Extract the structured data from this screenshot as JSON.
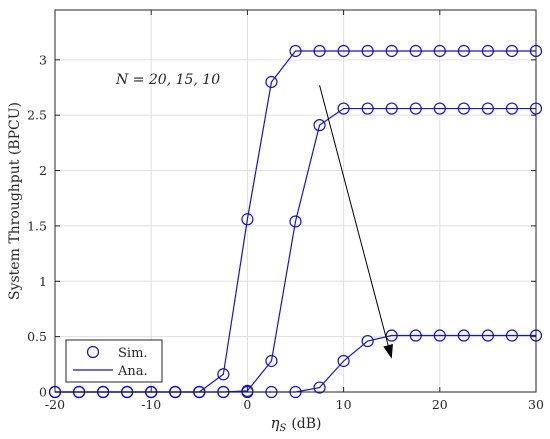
{
  "chart_data": {
    "type": "line",
    "xlabel_symbol": "η",
    "xlabel_sub": "S",
    "xlabel_unit": "(dB)",
    "ylabel": "System Throughput (BPCU)",
    "xlim": [
      -20,
      30
    ],
    "ylim": [
      0,
      3.45
    ],
    "xticks": [
      -20,
      -10,
      0,
      10,
      20,
      30
    ],
    "xtick_labels": [
      "-20",
      "-10",
      "0",
      "10",
      "20",
      "30"
    ],
    "yticks": [
      0,
      0.5,
      1,
      1.5,
      2,
      2.5,
      3
    ],
    "ytick_labels": [
      "0",
      "0.5",
      "1",
      "1.5",
      "2",
      "2.5",
      "3"
    ],
    "grid": true,
    "legend_placement": "bottom-left",
    "legend": [
      {
        "label": "Sim.",
        "style": "marker"
      },
      {
        "label": "Ana.",
        "style": "line"
      }
    ],
    "annotation": {
      "text": "N = 20, 15, 10",
      "arrow_from": [
        7.5,
        2.77
      ],
      "arrow_to": [
        15,
        0.3
      ]
    },
    "x": [
      -20,
      -17.5,
      -15,
      -12.5,
      -10,
      -7.5,
      -5,
      -2.5,
      0,
      2.5,
      5,
      7.5,
      10,
      12.5,
      15,
      17.5,
      20,
      22.5,
      25,
      27.5,
      30
    ],
    "series": [
      {
        "values": [
          0,
          0,
          0,
          0,
          0,
          0,
          0,
          0.16,
          1.56,
          2.8,
          3.08,
          3.08,
          3.08,
          3.08,
          3.08,
          3.08,
          3.08,
          3.08,
          3.08,
          3.08,
          3.08
        ]
      },
      {
        "values": [
          0,
          0,
          0,
          0,
          0,
          0,
          0,
          0,
          0.01,
          0.28,
          1.54,
          2.41,
          2.56,
          2.56,
          2.56,
          2.56,
          2.56,
          2.56,
          2.56,
          2.56,
          2.56
        ]
      },
      {
        "values": [
          0,
          0,
          0,
          0,
          0,
          0,
          0,
          0,
          0,
          0,
          0,
          0.04,
          0.28,
          0.46,
          0.51,
          0.51,
          0.51,
          0.51,
          0.51,
          0.51,
          0.51
        ]
      }
    ],
    "colors": {
      "series": "#1414c8",
      "axis": "#262626",
      "grid": "#dfdfdf",
      "annotation": "#000000"
    }
  }
}
